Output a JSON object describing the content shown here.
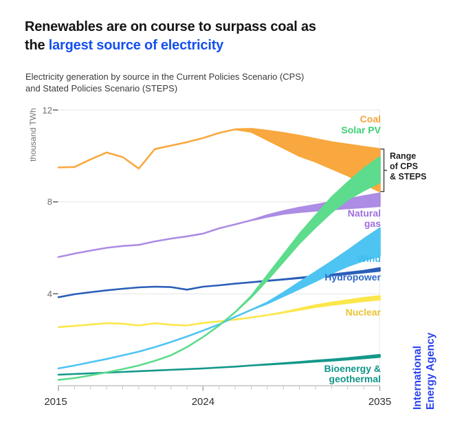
{
  "header": {
    "title_line1": "Renewables are on course to surpass coal as",
    "title_line2_dark": "the",
    "title_line2_highlight": "largest source of electricity",
    "subtitle_line1": "Electricity generation by source in the Current Policies Scenario (CPS)",
    "subtitle_line2": "and Stated Policies Scenario (STEPS)"
  },
  "colors": {
    "accent_blue": "#1450EE",
    "iea_blue": "#2A43EC",
    "title_dark": "#141414",
    "gridline": "#E4E4E4",
    "axis_line": "#C4C4C4"
  },
  "footer": {
    "logo_line1": "International",
    "logo_line2": "Energy Agency"
  },
  "chart_data": {
    "type": "area",
    "ylabel": "thousand TWh",
    "ylim": [
      0,
      12
    ],
    "yticks": [
      12,
      8,
      4
    ],
    "xticks": [
      2015,
      2024,
      2035
    ],
    "x": [
      2015,
      2016,
      2017,
      2018,
      2019,
      2020,
      2021,
      2022,
      2023,
      2024,
      2025,
      2026,
      2027,
      2028,
      2029,
      2030,
      2031,
      2032,
      2033,
      2034,
      2035
    ],
    "annotation": {
      "line1": "Range",
      "line2": "of CPS",
      "line3": "& STEPS"
    },
    "series": [
      {
        "name": "Nuclear",
        "color": "#FBE74B",
        "label_color": "#E9C433",
        "top": [
          2.55,
          2.6,
          2.66,
          2.72,
          2.7,
          2.62,
          2.72,
          2.65,
          2.62,
          2.73,
          2.8,
          2.88,
          2.97,
          3.07,
          3.2,
          3.35,
          3.5,
          3.62,
          3.72,
          3.82,
          3.9
        ],
        "bottom": [
          2.55,
          2.6,
          2.66,
          2.72,
          2.7,
          2.62,
          2.72,
          2.65,
          2.62,
          2.73,
          2.8,
          2.88,
          2.97,
          3.07,
          3.18,
          3.3,
          3.42,
          3.52,
          3.6,
          3.68,
          3.75
        ]
      },
      {
        "name": "Bioenergy & geothermal",
        "color": "#14988A",
        "label_color": "#0F9588",
        "top": [
          0.48,
          0.51,
          0.54,
          0.57,
          0.6,
          0.63,
          0.66,
          0.69,
          0.72,
          0.75,
          0.79,
          0.83,
          0.88,
          0.93,
          0.98,
          1.03,
          1.09,
          1.14,
          1.2,
          1.27,
          1.34
        ],
        "bottom": [
          0.48,
          0.51,
          0.54,
          0.57,
          0.6,
          0.63,
          0.66,
          0.69,
          0.72,
          0.75,
          0.79,
          0.83,
          0.88,
          0.92,
          0.96,
          1.0,
          1.05,
          1.09,
          1.14,
          1.19,
          1.25
        ]
      },
      {
        "name": "Hydropower",
        "color": "#2A5EB8",
        "label_color": "#2E68C9",
        "top": [
          3.85,
          3.98,
          4.07,
          4.15,
          4.22,
          4.28,
          4.31,
          4.29,
          4.18,
          4.31,
          4.37,
          4.44,
          4.5,
          4.57,
          4.63,
          4.7,
          4.77,
          4.84,
          4.92,
          5.0,
          5.12
        ],
        "bottom": [
          3.85,
          3.98,
          4.07,
          4.15,
          4.22,
          4.28,
          4.31,
          4.29,
          4.18,
          4.31,
          4.37,
          4.44,
          4.5,
          4.56,
          4.62,
          4.68,
          4.74,
          4.8,
          4.86,
          4.93,
          5.0
        ]
      },
      {
        "name": "Natural gas",
        "color": "#AC8CE4",
        "label_color": "#9C6FDE",
        "top": [
          5.6,
          5.75,
          5.88,
          6.0,
          6.08,
          6.13,
          6.28,
          6.4,
          6.5,
          6.62,
          6.85,
          7.02,
          7.2,
          7.42,
          7.6,
          7.75,
          7.87,
          8.0,
          8.12,
          8.25,
          8.37
        ],
        "bottom": [
          5.6,
          5.75,
          5.88,
          6.0,
          6.08,
          6.13,
          6.28,
          6.4,
          6.5,
          6.62,
          6.85,
          7.02,
          7.2,
          7.35,
          7.48,
          7.56,
          7.62,
          7.67,
          7.72,
          7.77,
          7.82
        ]
      },
      {
        "name": "Coal",
        "color": "#F8A83E",
        "label_color": "#F5A23A",
        "top": [
          9.5,
          9.52,
          9.85,
          10.15,
          9.95,
          9.45,
          10.3,
          10.45,
          10.6,
          10.78,
          11.0,
          11.16,
          11.18,
          11.1,
          11.0,
          10.88,
          10.74,
          10.6,
          10.5,
          10.4,
          10.3
        ],
        "bottom": [
          9.5,
          9.52,
          9.85,
          10.15,
          9.95,
          9.45,
          10.3,
          10.45,
          10.6,
          10.78,
          11.0,
          11.16,
          11.05,
          10.7,
          10.35,
          10.0,
          9.75,
          9.45,
          9.15,
          8.8,
          8.45
        ]
      },
      {
        "name": "Wind",
        "color": "#4EC4F2",
        "label_color": "#3DBCEE",
        "top": [
          0.75,
          0.88,
          1.02,
          1.16,
          1.32,
          1.48,
          1.68,
          1.9,
          2.14,
          2.4,
          2.67,
          3.0,
          3.3,
          3.62,
          4.05,
          4.5,
          4.95,
          5.4,
          5.88,
          6.38,
          6.85
        ],
        "bottom": [
          0.75,
          0.88,
          1.02,
          1.16,
          1.32,
          1.48,
          1.68,
          1.9,
          2.14,
          2.4,
          2.67,
          3.0,
          3.3,
          3.58,
          3.9,
          4.22,
          4.55,
          4.9,
          5.2,
          5.45,
          5.65
        ]
      },
      {
        "name": "Solar PV",
        "color": "#5CDC8C",
        "label_color": "#3FCF78",
        "top": [
          0.25,
          0.33,
          0.45,
          0.58,
          0.72,
          0.88,
          1.08,
          1.32,
          1.68,
          2.12,
          2.62,
          3.2,
          3.9,
          4.8,
          5.7,
          6.6,
          7.4,
          8.2,
          8.85,
          9.45,
          9.95
        ],
        "bottom": [
          0.25,
          0.33,
          0.45,
          0.58,
          0.72,
          0.88,
          1.08,
          1.32,
          1.68,
          2.12,
          2.62,
          3.2,
          3.85,
          4.6,
          5.4,
          6.2,
          6.9,
          7.55,
          8.1,
          8.5,
          8.85
        ]
      }
    ]
  }
}
